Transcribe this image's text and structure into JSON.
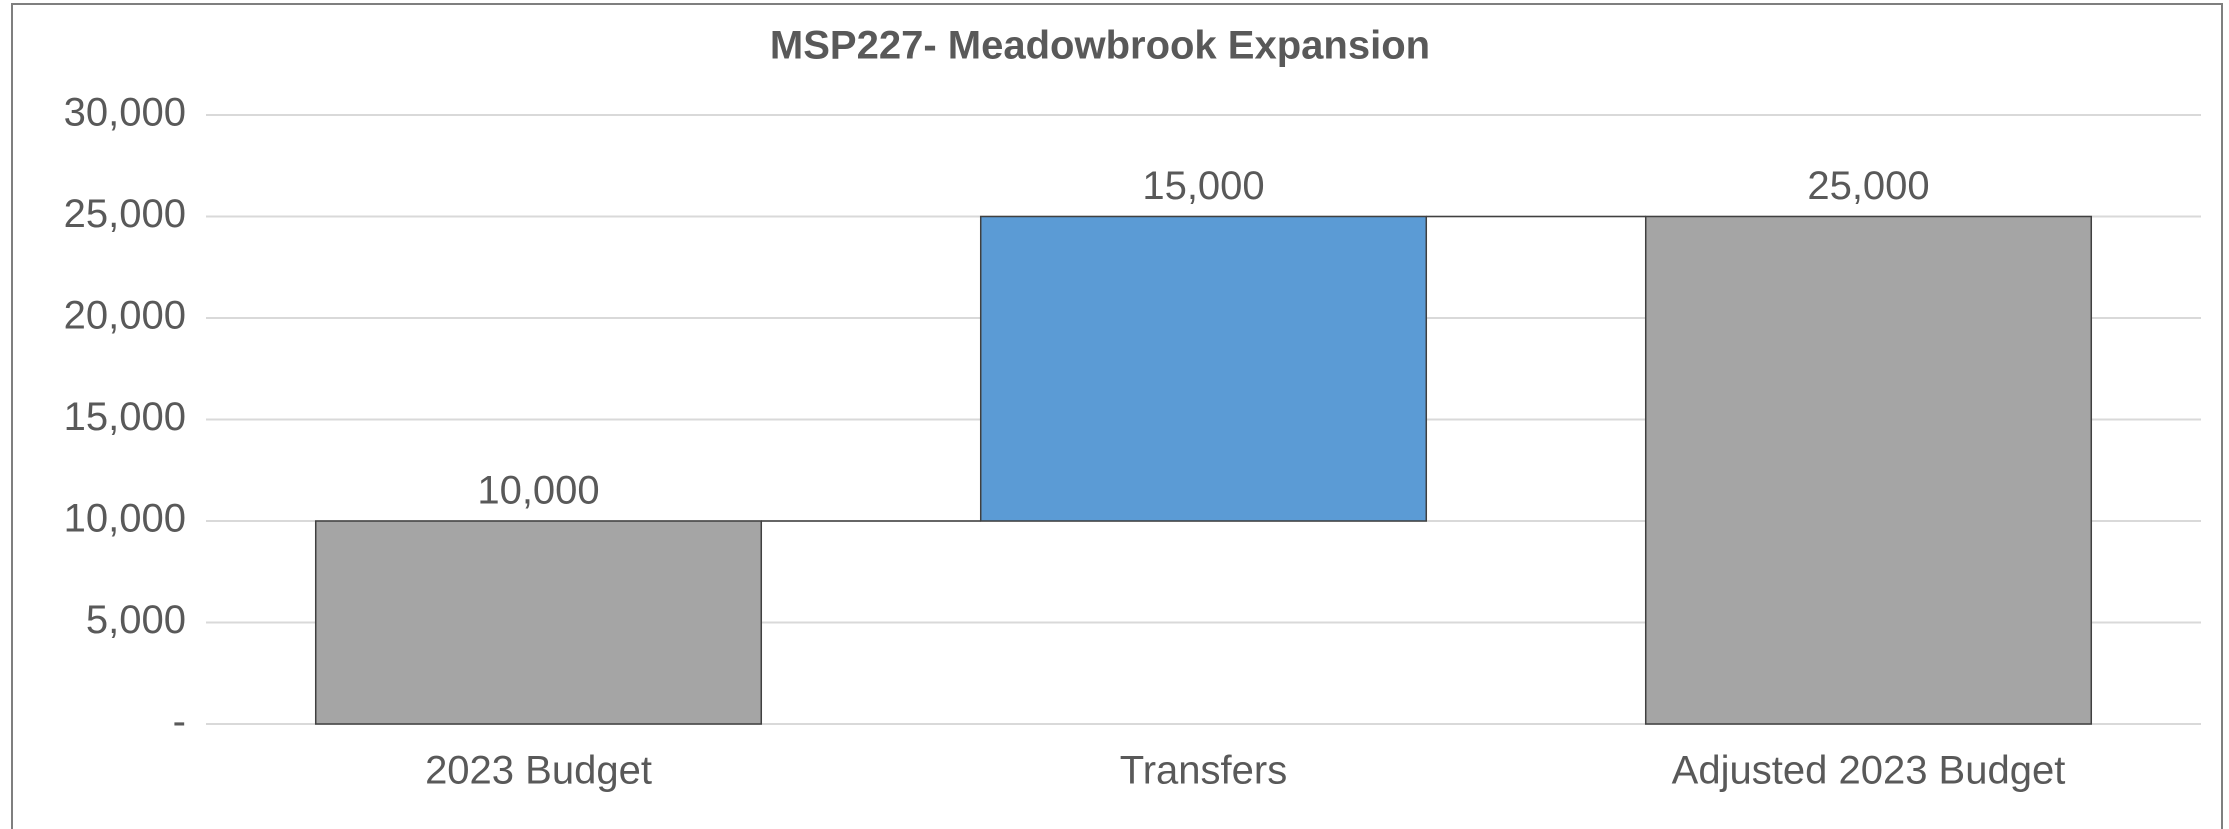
{
  "chart_data": {
    "type": "waterfall",
    "title": "MSP227- Meadowbrook Expansion",
    "categories": [
      "2023 Budget",
      "Transfers",
      "Adjusted 2023 Budget"
    ],
    "values": [
      10000,
      15000,
      25000
    ],
    "value_labels": [
      "10,000",
      "15,000",
      "25,000"
    ],
    "measures": [
      "total",
      "increase",
      "total"
    ],
    "colors": [
      "#a5a5a5",
      "#5b9bd5",
      "#a5a5a5"
    ],
    "ylim": [
      0,
      30000
    ],
    "yticks": [
      {
        "value": 0,
        "label": "-"
      },
      {
        "value": 5000,
        "label": "5,000"
      },
      {
        "value": 10000,
        "label": "10,000"
      },
      {
        "value": 15000,
        "label": "15,000"
      },
      {
        "value": 20000,
        "label": "20,000"
      },
      {
        "value": 25000,
        "label": "25,000"
      },
      {
        "value": 30000,
        "label": "30,000"
      }
    ],
    "grid": true
  }
}
